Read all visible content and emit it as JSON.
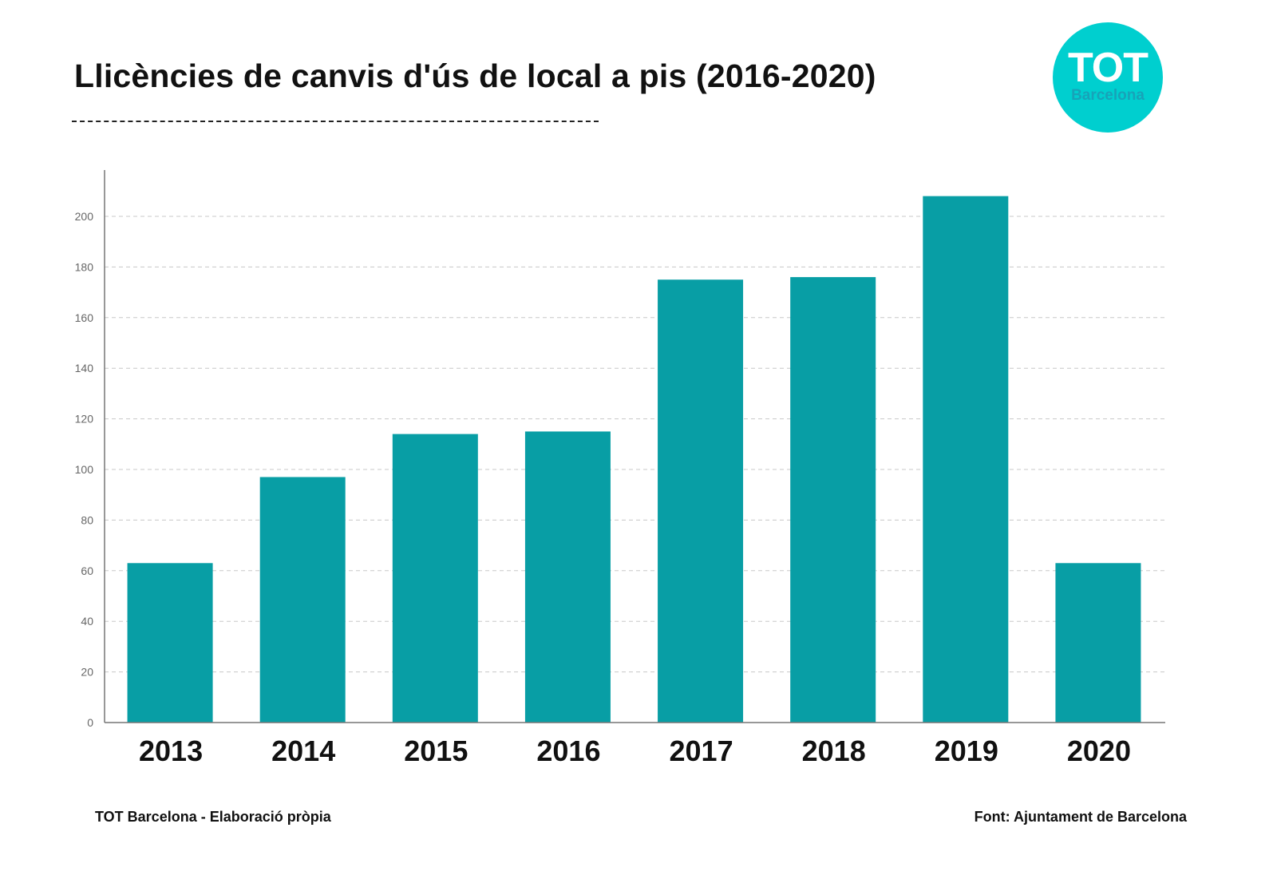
{
  "header": {
    "title": "Llicències de canvis d'ús de local a pis (2016-2020)"
  },
  "logo": {
    "text_main": "TOT",
    "text_sub": "Barcelona",
    "bg_color": "#00cfcf"
  },
  "footer": {
    "left": "TOT Barcelona - Elaboració pròpia",
    "right": "Font: Ajuntament de Barcelona"
  },
  "chart_data": {
    "type": "bar",
    "title": "Llicències de canvis d'ús de local a pis (2016-2020)",
    "categories": [
      "2013",
      "2014",
      "2015",
      "2016",
      "2017",
      "2018",
      "2019",
      "2020"
    ],
    "values": [
      63,
      97,
      114,
      115,
      175,
      176,
      208,
      63
    ],
    "yticks": [
      0,
      20,
      40,
      60,
      80,
      100,
      120,
      140,
      160,
      180,
      200
    ],
    "ylim": [
      0,
      218
    ],
    "grid": true,
    "bar_color": "#089ea5",
    "xlabel": "",
    "ylabel": ""
  }
}
